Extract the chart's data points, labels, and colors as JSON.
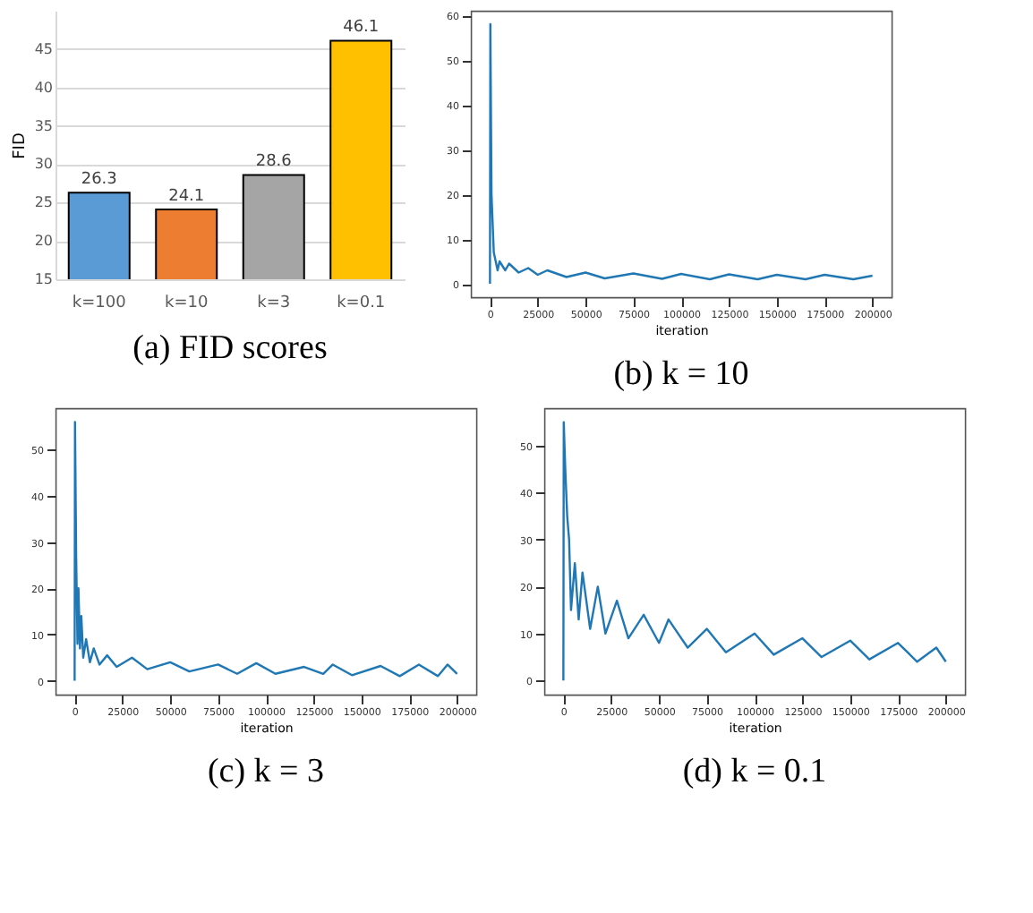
{
  "chart_data": [
    {
      "type": "bar",
      "title": "(a) FID scores",
      "ylabel": "FID",
      "categories": [
        "k=100",
        "k=10",
        "k=3",
        "k=0.1"
      ],
      "values": [
        26.3,
        24.1,
        28.6,
        46.1
      ],
      "colors": [
        "#5b9bd5",
        "#ed7d31",
        "#a5a5a5",
        "#ffc000"
      ],
      "ylim": [
        15,
        50
      ],
      "yticks": [
        15,
        20,
        25,
        30,
        35,
        40,
        45
      ],
      "grid": "y",
      "data_labels": true
    },
    {
      "type": "line",
      "title": "(b) k = 10",
      "xlabel": "iteration",
      "color": "#1f77b4",
      "xlim": [
        -10000,
        210000
      ],
      "xticks": [
        0,
        25000,
        50000,
        75000,
        100000,
        125000,
        150000,
        175000,
        200000
      ],
      "ylim": [
        -3,
        61
      ],
      "yticks": [
        0,
        10,
        20,
        30,
        40,
        50,
        60
      ],
      "grid": false,
      "x": [
        0,
        200,
        800,
        2000,
        3000,
        4000,
        5000,
        8000,
        10000,
        15000,
        20000,
        25000,
        30000,
        40000,
        50000,
        60000,
        75000,
        90000,
        100000,
        115000,
        125000,
        140000,
        150000,
        165000,
        175000,
        190000,
        200000
      ],
      "values": [
        0,
        58,
        20,
        7,
        5,
        3,
        5,
        3,
        4.5,
        2.5,
        3.5,
        2,
        3,
        1.5,
        2.5,
        1.2,
        2.3,
        1.1,
        2.2,
        1,
        2.1,
        1,
        2,
        1,
        2,
        1,
        1.8
      ]
    },
    {
      "type": "line",
      "title": "(c) k = 3",
      "xlabel": "iteration",
      "color": "#1f77b4",
      "xlim": [
        -10000,
        210000
      ],
      "xticks": [
        0,
        25000,
        50000,
        75000,
        100000,
        125000,
        150000,
        175000,
        200000
      ],
      "ylim": [
        -3,
        59
      ],
      "yticks": [
        0,
        10,
        20,
        30,
        40,
        50
      ],
      "grid": false,
      "x": [
        0,
        200,
        800,
        1500,
        2000,
        2800,
        3500,
        4500,
        6000,
        8000,
        10000,
        13000,
        17000,
        22000,
        30000,
        38000,
        50000,
        60000,
        75000,
        85000,
        95000,
        105000,
        120000,
        130000,
        135000,
        145000,
        160000,
        170000,
        180000,
        190000,
        195000,
        200000
      ],
      "values": [
        0,
        56,
        27,
        8,
        20,
        7,
        14,
        5,
        9,
        4,
        7,
        3.5,
        5.5,
        3,
        5,
        2.5,
        4,
        2,
        3.5,
        1.5,
        3.8,
        1.5,
        3,
        1.5,
        3.5,
        1.2,
        3.2,
        1,
        3.5,
        1,
        3.5,
        1.5
      ]
    },
    {
      "type": "line",
      "title": "(d) k = 0.1",
      "xlabel": "iteration",
      "color": "#1f77b4",
      "xlim": [
        -10000,
        210000
      ],
      "xticks": [
        0,
        25000,
        50000,
        75000,
        100000,
        125000,
        150000,
        175000,
        200000
      ],
      "ylim": [
        -3,
        58
      ],
      "yticks": [
        0,
        10,
        20,
        30,
        40,
        50
      ],
      "grid": false,
      "x": [
        0,
        200,
        1000,
        2000,
        3000,
        4000,
        6000,
        8000,
        10000,
        14000,
        18000,
        22000,
        28000,
        34000,
        42000,
        50000,
        55000,
        65000,
        75000,
        85000,
        100000,
        110000,
        125000,
        135000,
        150000,
        160000,
        175000,
        185000,
        195000,
        200000
      ],
      "values": [
        0,
        55,
        45,
        35,
        30,
        15,
        25,
        13,
        23,
        11,
        20,
        10,
        17,
        9,
        14,
        8,
        13,
        7,
        11,
        6,
        10,
        5.5,
        9,
        5,
        8.5,
        4.5,
        8,
        4,
        7,
        4
      ]
    }
  ]
}
